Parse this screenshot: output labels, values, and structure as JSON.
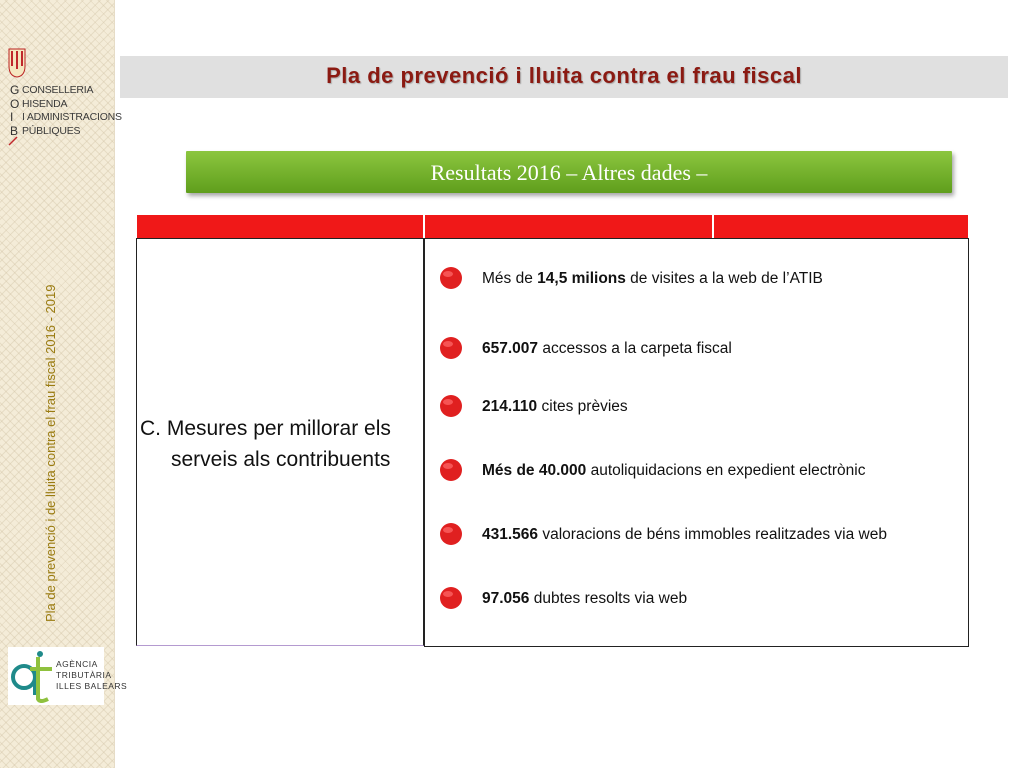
{
  "sidebar": {
    "logo_letters": [
      "G",
      "O",
      "I",
      "B"
    ],
    "logo_lines": [
      "CONSELLERIA",
      "HISENDA",
      "I ADMINISTRACIONS",
      "PÚBLIQUES"
    ],
    "vertical_caption": "Pla de prevenció i de lluita  contra el frau fiscal 2016 - 2019",
    "agency_lines": [
      "AGÈNCIA",
      "TRIBUTÀRIA",
      "ILLES BALEARS"
    ]
  },
  "header": {
    "title": "Pla de prevenció i lluita contra el frau fiscal"
  },
  "banner": {
    "label": "Resultats  2016 – Altres dades –"
  },
  "table": {
    "category_line1": "C. Mesures per millorar els",
    "category_line2": "serveis als contribuents",
    "items": [
      {
        "bold_before": "",
        "pre": "Més de ",
        "bold": "14,5 milions",
        "post": " de visites a la web de l’ATIB"
      },
      {
        "pre": "",
        "bold": "657.007",
        "post": " accessos a la carpeta fiscal"
      },
      {
        "pre": "",
        "bold": "214.110",
        "post": " cites prèvies"
      },
      {
        "pre": "",
        "bold": "Més de 40.000",
        "post": " autoliquidacions en expedient electrònic"
      },
      {
        "pre": "",
        "bold": "431.566",
        "post": " valoracions de béns immobles realitzades via web"
      },
      {
        "pre": "",
        "bold": "97.056",
        "post": " dubtes resolts via web"
      }
    ]
  },
  "colors": {
    "title": "#8b1a12",
    "header_red": "#f01818",
    "banner_green": "#6fb02a",
    "bullet_red": "#e02020",
    "caption_gold": "#9a7b10"
  }
}
